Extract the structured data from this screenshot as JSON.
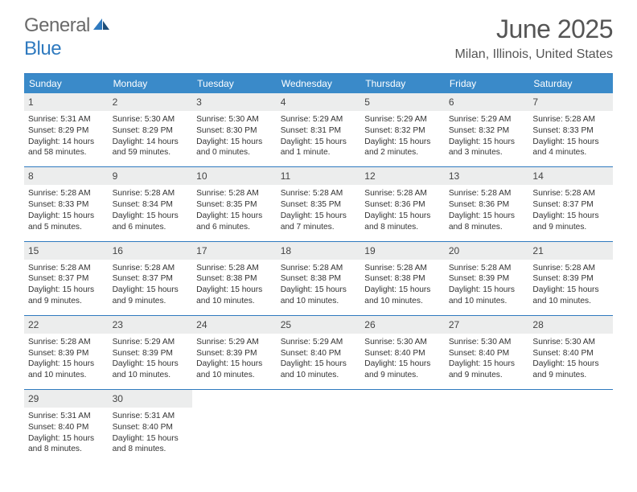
{
  "brand": {
    "word1": "General",
    "word2": "Blue"
  },
  "title": {
    "month": "June 2025",
    "location": "Milan, Illinois, United States"
  },
  "colors": {
    "header_bg": "#3a8ac9",
    "rule": "#2f7abf",
    "daynum_bg": "#eceded",
    "text": "#333333",
    "title_text": "#555555",
    "brand_gray": "#6a6a6a",
    "brand_blue": "#2f7abf",
    "page_bg": "#ffffff"
  },
  "dow": [
    "Sunday",
    "Monday",
    "Tuesday",
    "Wednesday",
    "Thursday",
    "Friday",
    "Saturday"
  ],
  "weeks": [
    [
      {
        "n": "1",
        "sr": "5:31 AM",
        "ss": "8:29 PM",
        "dl": "14 hours and 58 minutes."
      },
      {
        "n": "2",
        "sr": "5:30 AM",
        "ss": "8:29 PM",
        "dl": "14 hours and 59 minutes."
      },
      {
        "n": "3",
        "sr": "5:30 AM",
        "ss": "8:30 PM",
        "dl": "15 hours and 0 minutes."
      },
      {
        "n": "4",
        "sr": "5:29 AM",
        "ss": "8:31 PM",
        "dl": "15 hours and 1 minute."
      },
      {
        "n": "5",
        "sr": "5:29 AM",
        "ss": "8:32 PM",
        "dl": "15 hours and 2 minutes."
      },
      {
        "n": "6",
        "sr": "5:29 AM",
        "ss": "8:32 PM",
        "dl": "15 hours and 3 minutes."
      },
      {
        "n": "7",
        "sr": "5:28 AM",
        "ss": "8:33 PM",
        "dl": "15 hours and 4 minutes."
      }
    ],
    [
      {
        "n": "8",
        "sr": "5:28 AM",
        "ss": "8:33 PM",
        "dl": "15 hours and 5 minutes."
      },
      {
        "n": "9",
        "sr": "5:28 AM",
        "ss": "8:34 PM",
        "dl": "15 hours and 6 minutes."
      },
      {
        "n": "10",
        "sr": "5:28 AM",
        "ss": "8:35 PM",
        "dl": "15 hours and 6 minutes."
      },
      {
        "n": "11",
        "sr": "5:28 AM",
        "ss": "8:35 PM",
        "dl": "15 hours and 7 minutes."
      },
      {
        "n": "12",
        "sr": "5:28 AM",
        "ss": "8:36 PM",
        "dl": "15 hours and 8 minutes."
      },
      {
        "n": "13",
        "sr": "5:28 AM",
        "ss": "8:36 PM",
        "dl": "15 hours and 8 minutes."
      },
      {
        "n": "14",
        "sr": "5:28 AM",
        "ss": "8:37 PM",
        "dl": "15 hours and 9 minutes."
      }
    ],
    [
      {
        "n": "15",
        "sr": "5:28 AM",
        "ss": "8:37 PM",
        "dl": "15 hours and 9 minutes."
      },
      {
        "n": "16",
        "sr": "5:28 AM",
        "ss": "8:37 PM",
        "dl": "15 hours and 9 minutes."
      },
      {
        "n": "17",
        "sr": "5:28 AM",
        "ss": "8:38 PM",
        "dl": "15 hours and 10 minutes."
      },
      {
        "n": "18",
        "sr": "5:28 AM",
        "ss": "8:38 PM",
        "dl": "15 hours and 10 minutes."
      },
      {
        "n": "19",
        "sr": "5:28 AM",
        "ss": "8:38 PM",
        "dl": "15 hours and 10 minutes."
      },
      {
        "n": "20",
        "sr": "5:28 AM",
        "ss": "8:39 PM",
        "dl": "15 hours and 10 minutes."
      },
      {
        "n": "21",
        "sr": "5:28 AM",
        "ss": "8:39 PM",
        "dl": "15 hours and 10 minutes."
      }
    ],
    [
      {
        "n": "22",
        "sr": "5:28 AM",
        "ss": "8:39 PM",
        "dl": "15 hours and 10 minutes."
      },
      {
        "n": "23",
        "sr": "5:29 AM",
        "ss": "8:39 PM",
        "dl": "15 hours and 10 minutes."
      },
      {
        "n": "24",
        "sr": "5:29 AM",
        "ss": "8:39 PM",
        "dl": "15 hours and 10 minutes."
      },
      {
        "n": "25",
        "sr": "5:29 AM",
        "ss": "8:40 PM",
        "dl": "15 hours and 10 minutes."
      },
      {
        "n": "26",
        "sr": "5:30 AM",
        "ss": "8:40 PM",
        "dl": "15 hours and 9 minutes."
      },
      {
        "n": "27",
        "sr": "5:30 AM",
        "ss": "8:40 PM",
        "dl": "15 hours and 9 minutes."
      },
      {
        "n": "28",
        "sr": "5:30 AM",
        "ss": "8:40 PM",
        "dl": "15 hours and 9 minutes."
      }
    ],
    [
      {
        "n": "29",
        "sr": "5:31 AM",
        "ss": "8:40 PM",
        "dl": "15 hours and 8 minutes."
      },
      {
        "n": "30",
        "sr": "5:31 AM",
        "ss": "8:40 PM",
        "dl": "15 hours and 8 minutes."
      },
      null,
      null,
      null,
      null,
      null
    ]
  ],
  "labels": {
    "sunrise": "Sunrise: ",
    "sunset": "Sunset: ",
    "daylight": "Daylight: "
  }
}
